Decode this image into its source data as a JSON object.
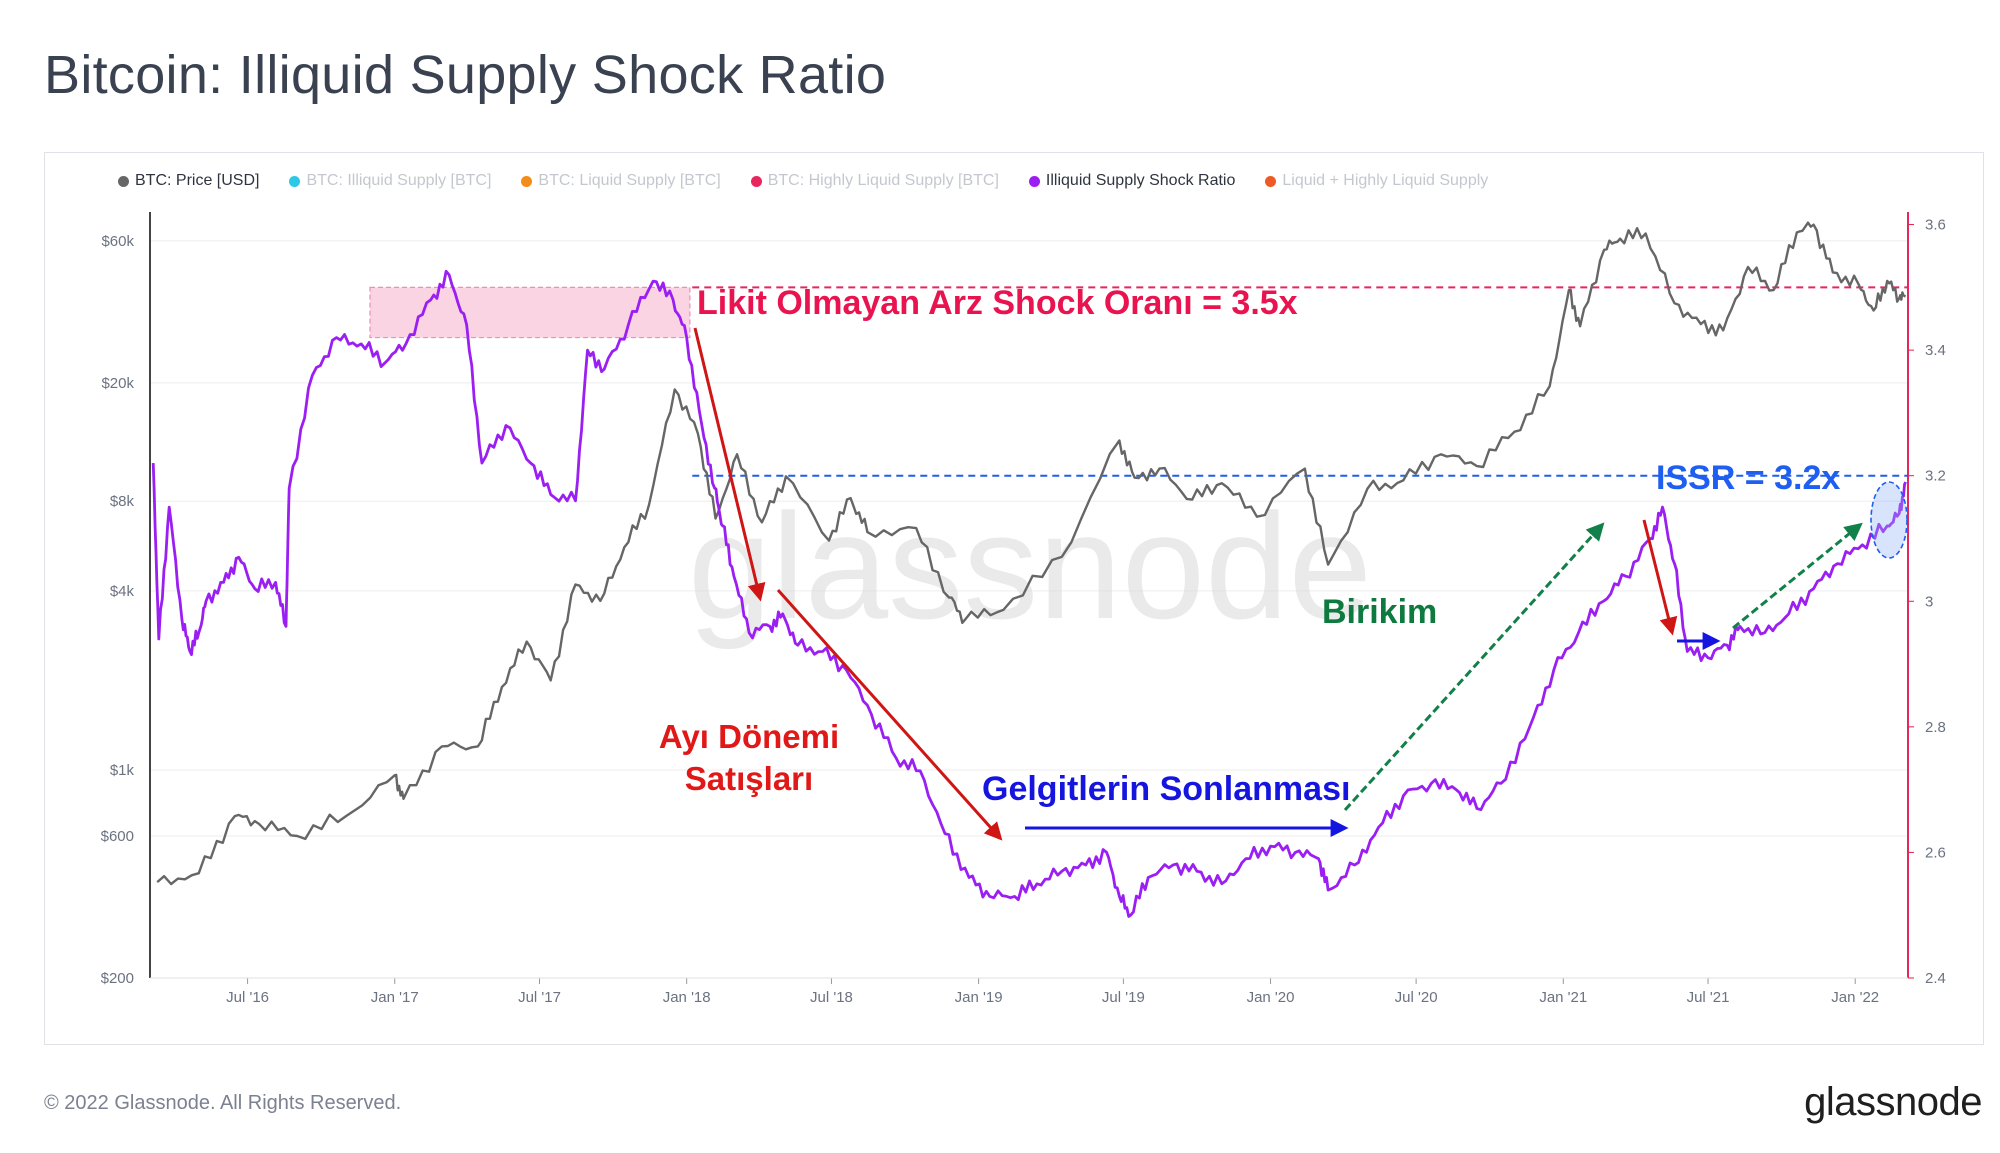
{
  "title": "Bitcoin: Illiquid Supply Shock Ratio",
  "footer": "© 2022 Glassnode. All Rights Reserved.",
  "brand": "glassnode",
  "watermark": "glassnode",
  "legend": [
    {
      "label": "BTC: Price [USD]",
      "color": "#666666",
      "active": true
    },
    {
      "label": "BTC: Illiquid Supply [BTC]",
      "color": "#2ec7e6",
      "active": false
    },
    {
      "label": "BTC: Liquid Supply [BTC]",
      "color": "#f28c1a",
      "active": false
    },
    {
      "label": "BTC: Highly Liquid Supply [BTC]",
      "color": "#e8265e",
      "active": false
    },
    {
      "label": "Illiquid Supply Shock Ratio",
      "color": "#9b1ff2",
      "active": true
    },
    {
      "label": "Liquid + Highly Liquid Supply",
      "color": "#ee5a24",
      "active": false
    }
  ],
  "chart_data": {
    "type": "line",
    "x_ticks": [
      "Jul '16",
      "Jan '17",
      "Jul '17",
      "Jan '18",
      "Jul '18",
      "Jan '19",
      "Jul '19",
      "Jan '20",
      "Jul '20",
      "Jan '21",
      "Jul '21",
      "Jan '22"
    ],
    "y_left": {
      "scale": "log",
      "ticks": [
        "$200",
        "$600",
        "$1k",
        "$4k",
        "$8k",
        "$20k",
        "$60k"
      ],
      "range": [
        200,
        75000
      ]
    },
    "y_right": {
      "scale": "linear",
      "ticks": [
        "2.4",
        "2.6",
        "2.8",
        "3",
        "3.2",
        "3.4",
        "3.6"
      ],
      "range": [
        2.4,
        3.62
      ]
    },
    "series": [
      {
        "name": "BTC: Price [USD]",
        "color": "#666666",
        "axis": "left",
        "points": [
          [
            "2016-03-10",
            420
          ],
          [
            "2016-05-01",
            450
          ],
          [
            "2016-06-15",
            700
          ],
          [
            "2016-07-15",
            660
          ],
          [
            "2016-09-01",
            600
          ],
          [
            "2016-11-01",
            700
          ],
          [
            "2017-01-01",
            960
          ],
          [
            "2017-01-12",
            800
          ],
          [
            "2017-03-01",
            1200
          ],
          [
            "2017-04-15",
            1200
          ],
          [
            "2017-05-15",
            1900
          ],
          [
            "2017-06-15",
            2700
          ],
          [
            "2017-07-15",
            2000
          ],
          [
            "2017-08-15",
            4200
          ],
          [
            "2017-09-15",
            3700
          ],
          [
            "2017-10-15",
            5600
          ],
          [
            "2017-11-15",
            7800
          ],
          [
            "2017-12-17",
            19000
          ],
          [
            "2018-01-15",
            13500
          ],
          [
            "2018-02-06",
            7000
          ],
          [
            "2018-03-05",
            11500
          ],
          [
            "2018-04-05",
            6800
          ],
          [
            "2018-05-05",
            9700
          ],
          [
            "2018-06-28",
            5900
          ],
          [
            "2018-07-25",
            8200
          ],
          [
            "2018-08-15",
            6300
          ],
          [
            "2018-10-15",
            6500
          ],
          [
            "2018-11-25",
            3800
          ],
          [
            "2018-12-15",
            3200
          ],
          [
            "2019-02-01",
            3450
          ],
          [
            "2019-04-15",
            5200
          ],
          [
            "2019-06-26",
            12800
          ],
          [
            "2019-07-15",
            9600
          ],
          [
            "2019-08-15",
            10300
          ],
          [
            "2019-09-25",
            8100
          ],
          [
            "2019-11-01",
            9200
          ],
          [
            "2019-12-15",
            7100
          ],
          [
            "2020-02-13",
            10300
          ],
          [
            "2020-03-13",
            4900
          ],
          [
            "2020-05-01",
            8800
          ],
          [
            "2020-06-15",
            9400
          ],
          [
            "2020-08-01",
            11500
          ],
          [
            "2020-09-15",
            10500
          ],
          [
            "2020-11-01",
            13700
          ],
          [
            "2020-12-15",
            19500
          ],
          [
            "2021-01-08",
            41000
          ],
          [
            "2021-01-22",
            31000
          ],
          [
            "2021-02-21",
            56000
          ],
          [
            "2021-03-13",
            61000
          ],
          [
            "2021-04-14",
            63500
          ],
          [
            "2021-05-20",
            37000
          ],
          [
            "2021-06-22",
            31500
          ],
          [
            "2021-07-20",
            30000
          ],
          [
            "2021-08-20",
            49000
          ],
          [
            "2021-09-21",
            41000
          ],
          [
            "2021-10-20",
            64000
          ],
          [
            "2021-11-10",
            68000
          ],
          [
            "2021-12-04",
            47000
          ],
          [
            "2022-01-05",
            43000
          ],
          [
            "2022-01-24",
            35000
          ],
          [
            "2022-02-10",
            44000
          ],
          [
            "2022-02-25",
            38500
          ],
          [
            "2022-03-05",
            39000
          ]
        ]
      },
      {
        "name": "Illiquid Supply Shock Ratio",
        "color": "#9b1ff2",
        "axis": "right",
        "points": [
          [
            "2016-03-05",
            3.22
          ],
          [
            "2016-03-12",
            2.94
          ],
          [
            "2016-03-25",
            3.15
          ],
          [
            "2016-04-10",
            2.97
          ],
          [
            "2016-04-20",
            2.92
          ],
          [
            "2016-05-01",
            2.95
          ],
          [
            "2016-05-10",
            3.0
          ],
          [
            "2016-06-01",
            3.03
          ],
          [
            "2016-06-20",
            3.07
          ],
          [
            "2016-07-10",
            3.02
          ],
          [
            "2016-08-05",
            3.03
          ],
          [
            "2016-08-18",
            2.96
          ],
          [
            "2016-08-22",
            3.18
          ],
          [
            "2016-09-20",
            3.36
          ],
          [
            "2016-10-20",
            3.42
          ],
          [
            "2016-11-20",
            3.41
          ],
          [
            "2016-12-20",
            3.38
          ],
          [
            "2017-01-15",
            3.41
          ],
          [
            "2017-02-15",
            3.48
          ],
          [
            "2017-03-10",
            3.52
          ],
          [
            "2017-04-01",
            3.44
          ],
          [
            "2017-04-20",
            3.22
          ],
          [
            "2017-05-20",
            3.28
          ],
          [
            "2017-06-20",
            3.22
          ],
          [
            "2017-07-15",
            3.17
          ],
          [
            "2017-08-15",
            3.16
          ],
          [
            "2017-08-30",
            3.4
          ],
          [
            "2017-09-20",
            3.37
          ],
          [
            "2017-10-20",
            3.44
          ],
          [
            "2017-11-20",
            3.51
          ],
          [
            "2017-12-15",
            3.48
          ],
          [
            "2018-01-01",
            3.42
          ],
          [
            "2018-01-20",
            3.28
          ],
          [
            "2018-02-05",
            3.18
          ],
          [
            "2018-02-15",
            3.12
          ],
          [
            "2018-03-01",
            3.04
          ],
          [
            "2018-03-20",
            2.95
          ],
          [
            "2018-04-15",
            2.96
          ],
          [
            "2018-05-01",
            2.98
          ],
          [
            "2018-05-20",
            2.93
          ],
          [
            "2018-06-20",
            2.92
          ],
          [
            "2018-07-20",
            2.89
          ],
          [
            "2018-08-20",
            2.82
          ],
          [
            "2018-09-20",
            2.75
          ],
          [
            "2018-10-20",
            2.73
          ],
          [
            "2018-11-20",
            2.63
          ],
          [
            "2018-12-20",
            2.56
          ],
          [
            "2019-01-15",
            2.53
          ],
          [
            "2019-02-15",
            2.53
          ],
          [
            "2019-03-15",
            2.55
          ],
          [
            "2019-04-15",
            2.57
          ],
          [
            "2019-05-15",
            2.58
          ],
          [
            "2019-06-10",
            2.6
          ],
          [
            "2019-06-26",
            2.53
          ],
          [
            "2019-07-10",
            2.5
          ],
          [
            "2019-08-01",
            2.56
          ],
          [
            "2019-09-01",
            2.58
          ],
          [
            "2019-10-01",
            2.57
          ],
          [
            "2019-11-01",
            2.55
          ],
          [
            "2019-12-01",
            2.59
          ],
          [
            "2020-01-01",
            2.61
          ],
          [
            "2020-02-01",
            2.6
          ],
          [
            "2020-03-01",
            2.59
          ],
          [
            "2020-03-13",
            2.54
          ],
          [
            "2020-04-15",
            2.58
          ],
          [
            "2020-05-15",
            2.64
          ],
          [
            "2020-06-15",
            2.69
          ],
          [
            "2020-07-20",
            2.71
          ],
          [
            "2020-08-20",
            2.7
          ],
          [
            "2020-09-15",
            2.67
          ],
          [
            "2020-10-15",
            2.71
          ],
          [
            "2020-11-20",
            2.8
          ],
          [
            "2020-12-20",
            2.89
          ],
          [
            "2021-01-20",
            2.95
          ],
          [
            "2021-02-20",
            3.0
          ],
          [
            "2021-03-20",
            3.04
          ],
          [
            "2021-04-20",
            3.1
          ],
          [
            "2021-05-05",
            3.15
          ],
          [
            "2021-05-20",
            3.06
          ],
          [
            "2021-06-05",
            2.92
          ],
          [
            "2021-07-01",
            2.91
          ],
          [
            "2021-07-25",
            2.93
          ],
          [
            "2021-08-10",
            2.96
          ],
          [
            "2021-09-10",
            2.95
          ],
          [
            "2021-10-10",
            2.98
          ],
          [
            "2021-11-10",
            3.02
          ],
          [
            "2021-12-10",
            3.06
          ],
          [
            "2022-01-10",
            3.09
          ],
          [
            "2022-02-10",
            3.12
          ],
          [
            "2022-02-25",
            3.14
          ],
          [
            "2022-03-05",
            3.19
          ]
        ]
      }
    ],
    "reference_lines": [
      {
        "axis": "right",
        "value": 3.5,
        "color": "#e8265e",
        "style": "dashed"
      },
      {
        "axis": "right",
        "value": 3.2,
        "color": "#1e5ef0",
        "style": "dashed"
      }
    ],
    "highlight_box": {
      "from": "2016-12-01",
      "to": "2018-01-05",
      "y_from": 3.42,
      "y_to": 3.5,
      "color": "#f9c5da"
    },
    "annotations": [
      {
        "text": "Likit Olmayan Arz Shock Oranı = 3.5x",
        "color": "#e8134f"
      },
      {
        "text": "ISSR = 3.2x",
        "color": "#1e5ef0"
      },
      {
        "text": "Ayı Dönemi",
        "color": "#e01818"
      },
      {
        "text": "Satışları",
        "color": "#e01818"
      },
      {
        "text": "Gelgitlerin Sonlanması",
        "color": "#1515e0"
      },
      {
        "text": "Birikim",
        "color": "#0e7a3f"
      }
    ]
  }
}
